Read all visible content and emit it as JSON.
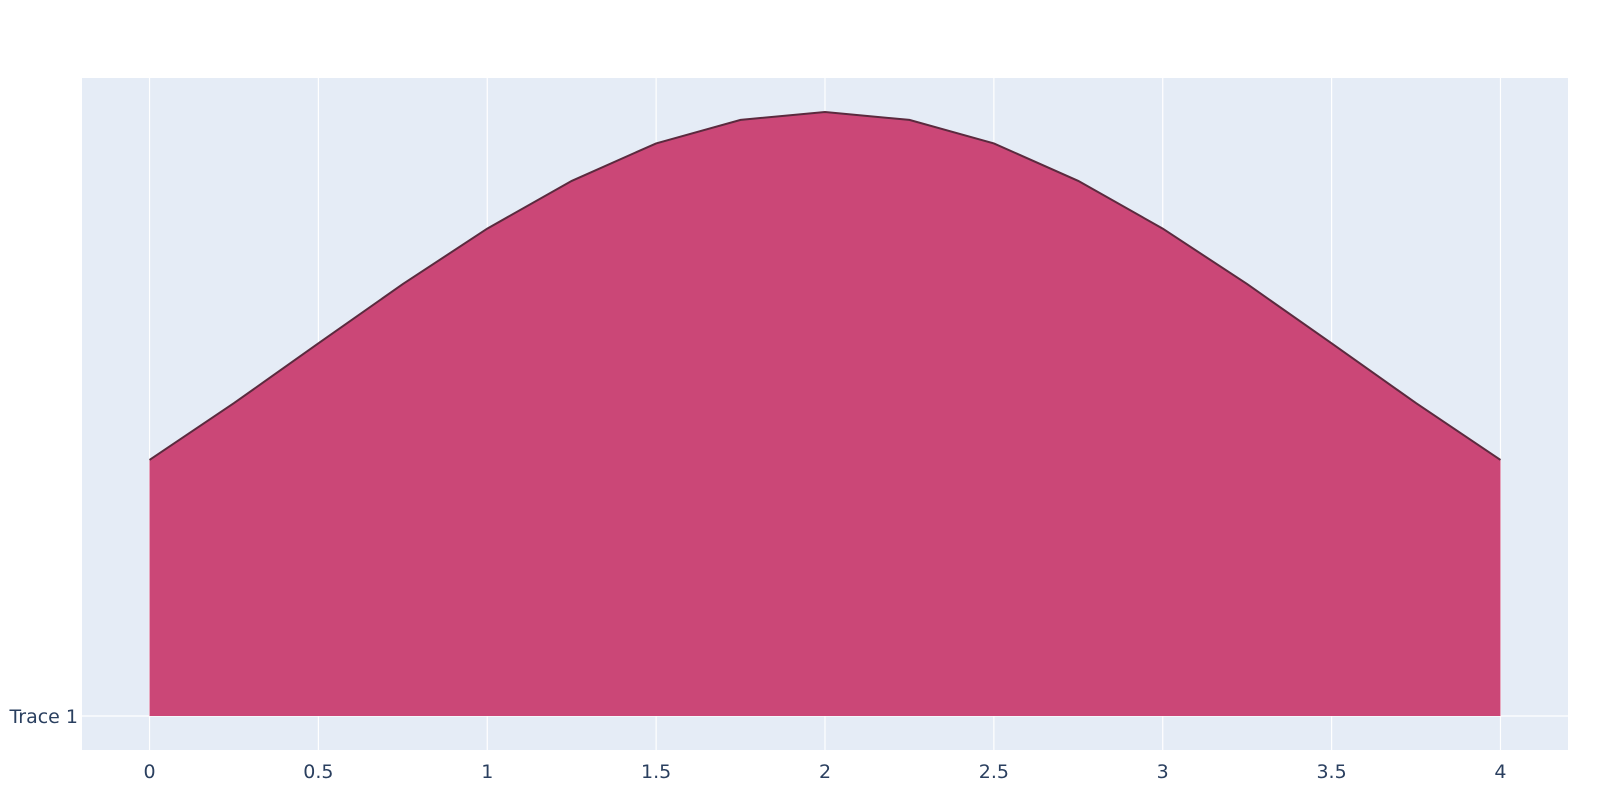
{
  "chart_data": {
    "type": "area",
    "title": "",
    "xlabel": "",
    "ylabel": "",
    "xlim": [
      -0.2,
      4.2
    ],
    "x_ticks": [
      "0",
      "0.5",
      "1",
      "1.5",
      "2",
      "2.5",
      "3",
      "3.5",
      "4"
    ],
    "y_categories": [
      "Trace 1"
    ],
    "grid": true,
    "legend": "none",
    "series": [
      {
        "category": "Trace 1",
        "x": [
          0,
          0.25,
          0.5,
          0.75,
          1,
          1.25,
          1.5,
          1.75,
          2,
          2.25,
          2.5,
          2.75,
          3,
          3.25,
          3.5,
          3.75,
          4
        ],
        "density": [
          0.424,
          0.518,
          0.617,
          0.715,
          0.807,
          0.886,
          0.948,
          0.987,
          1.0,
          0.987,
          0.948,
          0.886,
          0.807,
          0.715,
          0.617,
          0.518,
          0.424
        ]
      }
    ],
    "colors": {
      "fill": "#cb4777",
      "line": "#5b2a3e",
      "plot_bg": "#e5ecf6",
      "grid": "#ffffff",
      "tick_text": "#2a3f5f"
    }
  }
}
